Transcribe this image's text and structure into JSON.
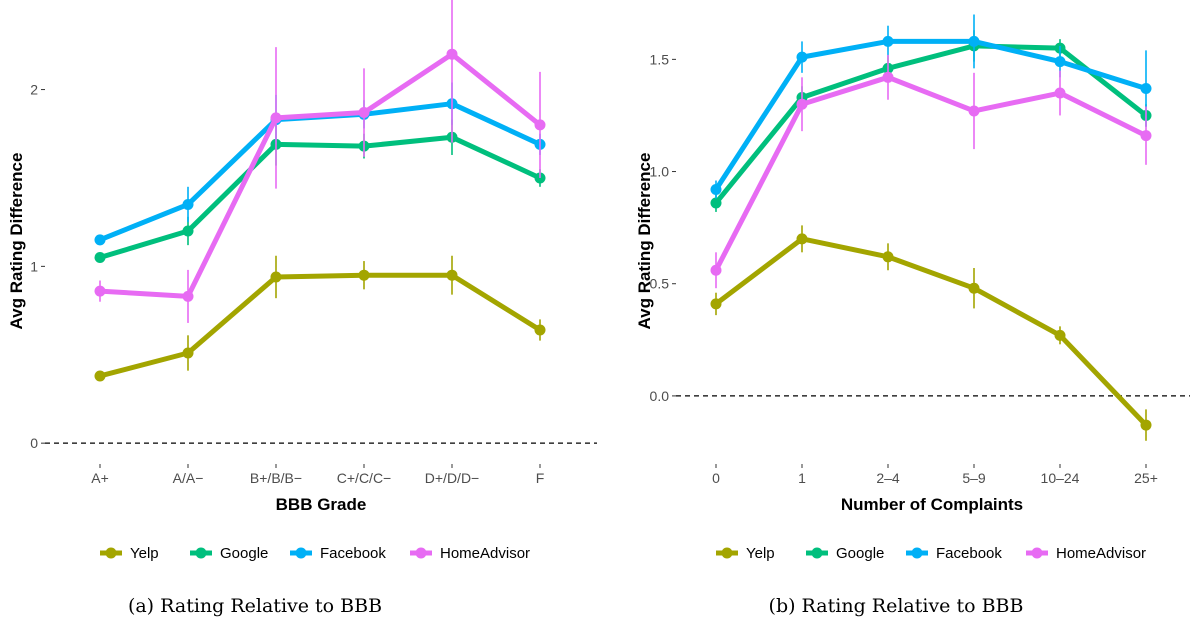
{
  "colors": {
    "Yelp": "#A3A500",
    "Google": "#00BF7D",
    "Facebook": "#00B0F6",
    "HomeAdvisor": "#E76BF3"
  },
  "chart_data": [
    {
      "type": "line",
      "caption": "(a) Rating Relative to BBB",
      "xlabel": "BBB Grade",
      "ylabel": "Avg Rating Difference",
      "categories": [
        "A+",
        "A/A−",
        "B+/B/B−",
        "C+/C/C−",
        "D+/D/D−",
        "F"
      ],
      "ylim": [
        -0.05,
        2.45
      ],
      "yticks": [
        0,
        1,
        2
      ],
      "reference_line": 0,
      "legend_position": "bottom",
      "series": [
        {
          "name": "Yelp",
          "values": [
            0.38,
            0.51,
            0.94,
            0.95,
            0.95,
            0.64
          ],
          "err": [
            0.02,
            0.1,
            0.12,
            0.08,
            0.11,
            0.06
          ]
        },
        {
          "name": "Google",
          "values": [
            1.05,
            1.2,
            1.69,
            1.68,
            1.73,
            1.5
          ],
          "err": [
            0.02,
            0.08,
            0.12,
            0.07,
            0.1,
            0.05
          ]
        },
        {
          "name": "Facebook",
          "values": [
            1.15,
            1.35,
            1.83,
            1.86,
            1.92,
            1.69
          ],
          "err": [
            0.03,
            0.1,
            0.14,
            0.08,
            0.12,
            0.06
          ]
        },
        {
          "name": "HomeAdvisor",
          "values": [
            0.86,
            0.83,
            1.84,
            1.87,
            2.2,
            1.8
          ],
          "err": [
            0.06,
            0.15,
            0.4,
            0.25,
            0.5,
            0.3
          ]
        }
      ]
    },
    {
      "type": "line",
      "caption": "(b) Rating Relative to BBB",
      "xlabel": "Number of Complaints",
      "ylabel": "Avg Rating Difference",
      "categories": [
        "0",
        "1",
        "2–4",
        "5–9",
        "10–24",
        "25+"
      ],
      "ylim": [
        -0.25,
        1.72
      ],
      "yticks": [
        0.0,
        0.5,
        1.0,
        1.5
      ],
      "ytick_labels": [
        "0.0",
        "0.5",
        "1.0",
        "1.5"
      ],
      "reference_line": 0,
      "legend_position": "bottom",
      "series": [
        {
          "name": "Yelp",
          "values": [
            0.41,
            0.7,
            0.62,
            0.48,
            0.27,
            -0.13
          ],
          "err": [
            0.05,
            0.06,
            0.06,
            0.09,
            0.04,
            0.07
          ]
        },
        {
          "name": "Google",
          "values": [
            0.86,
            1.33,
            1.46,
            1.56,
            1.55,
            1.25
          ],
          "err": [
            0.04,
            0.05,
            0.05,
            0.07,
            0.04,
            0.05
          ]
        },
        {
          "name": "Facebook",
          "values": [
            0.92,
            1.51,
            1.58,
            1.58,
            1.49,
            1.37
          ],
          "err": [
            0.04,
            0.07,
            0.07,
            0.12,
            0.07,
            0.17
          ]
        },
        {
          "name": "HomeAdvisor",
          "values": [
            0.56,
            1.3,
            1.42,
            1.27,
            1.35,
            1.16
          ],
          "err": [
            0.08,
            0.12,
            0.1,
            0.17,
            0.1,
            0.13
          ]
        }
      ]
    }
  ]
}
